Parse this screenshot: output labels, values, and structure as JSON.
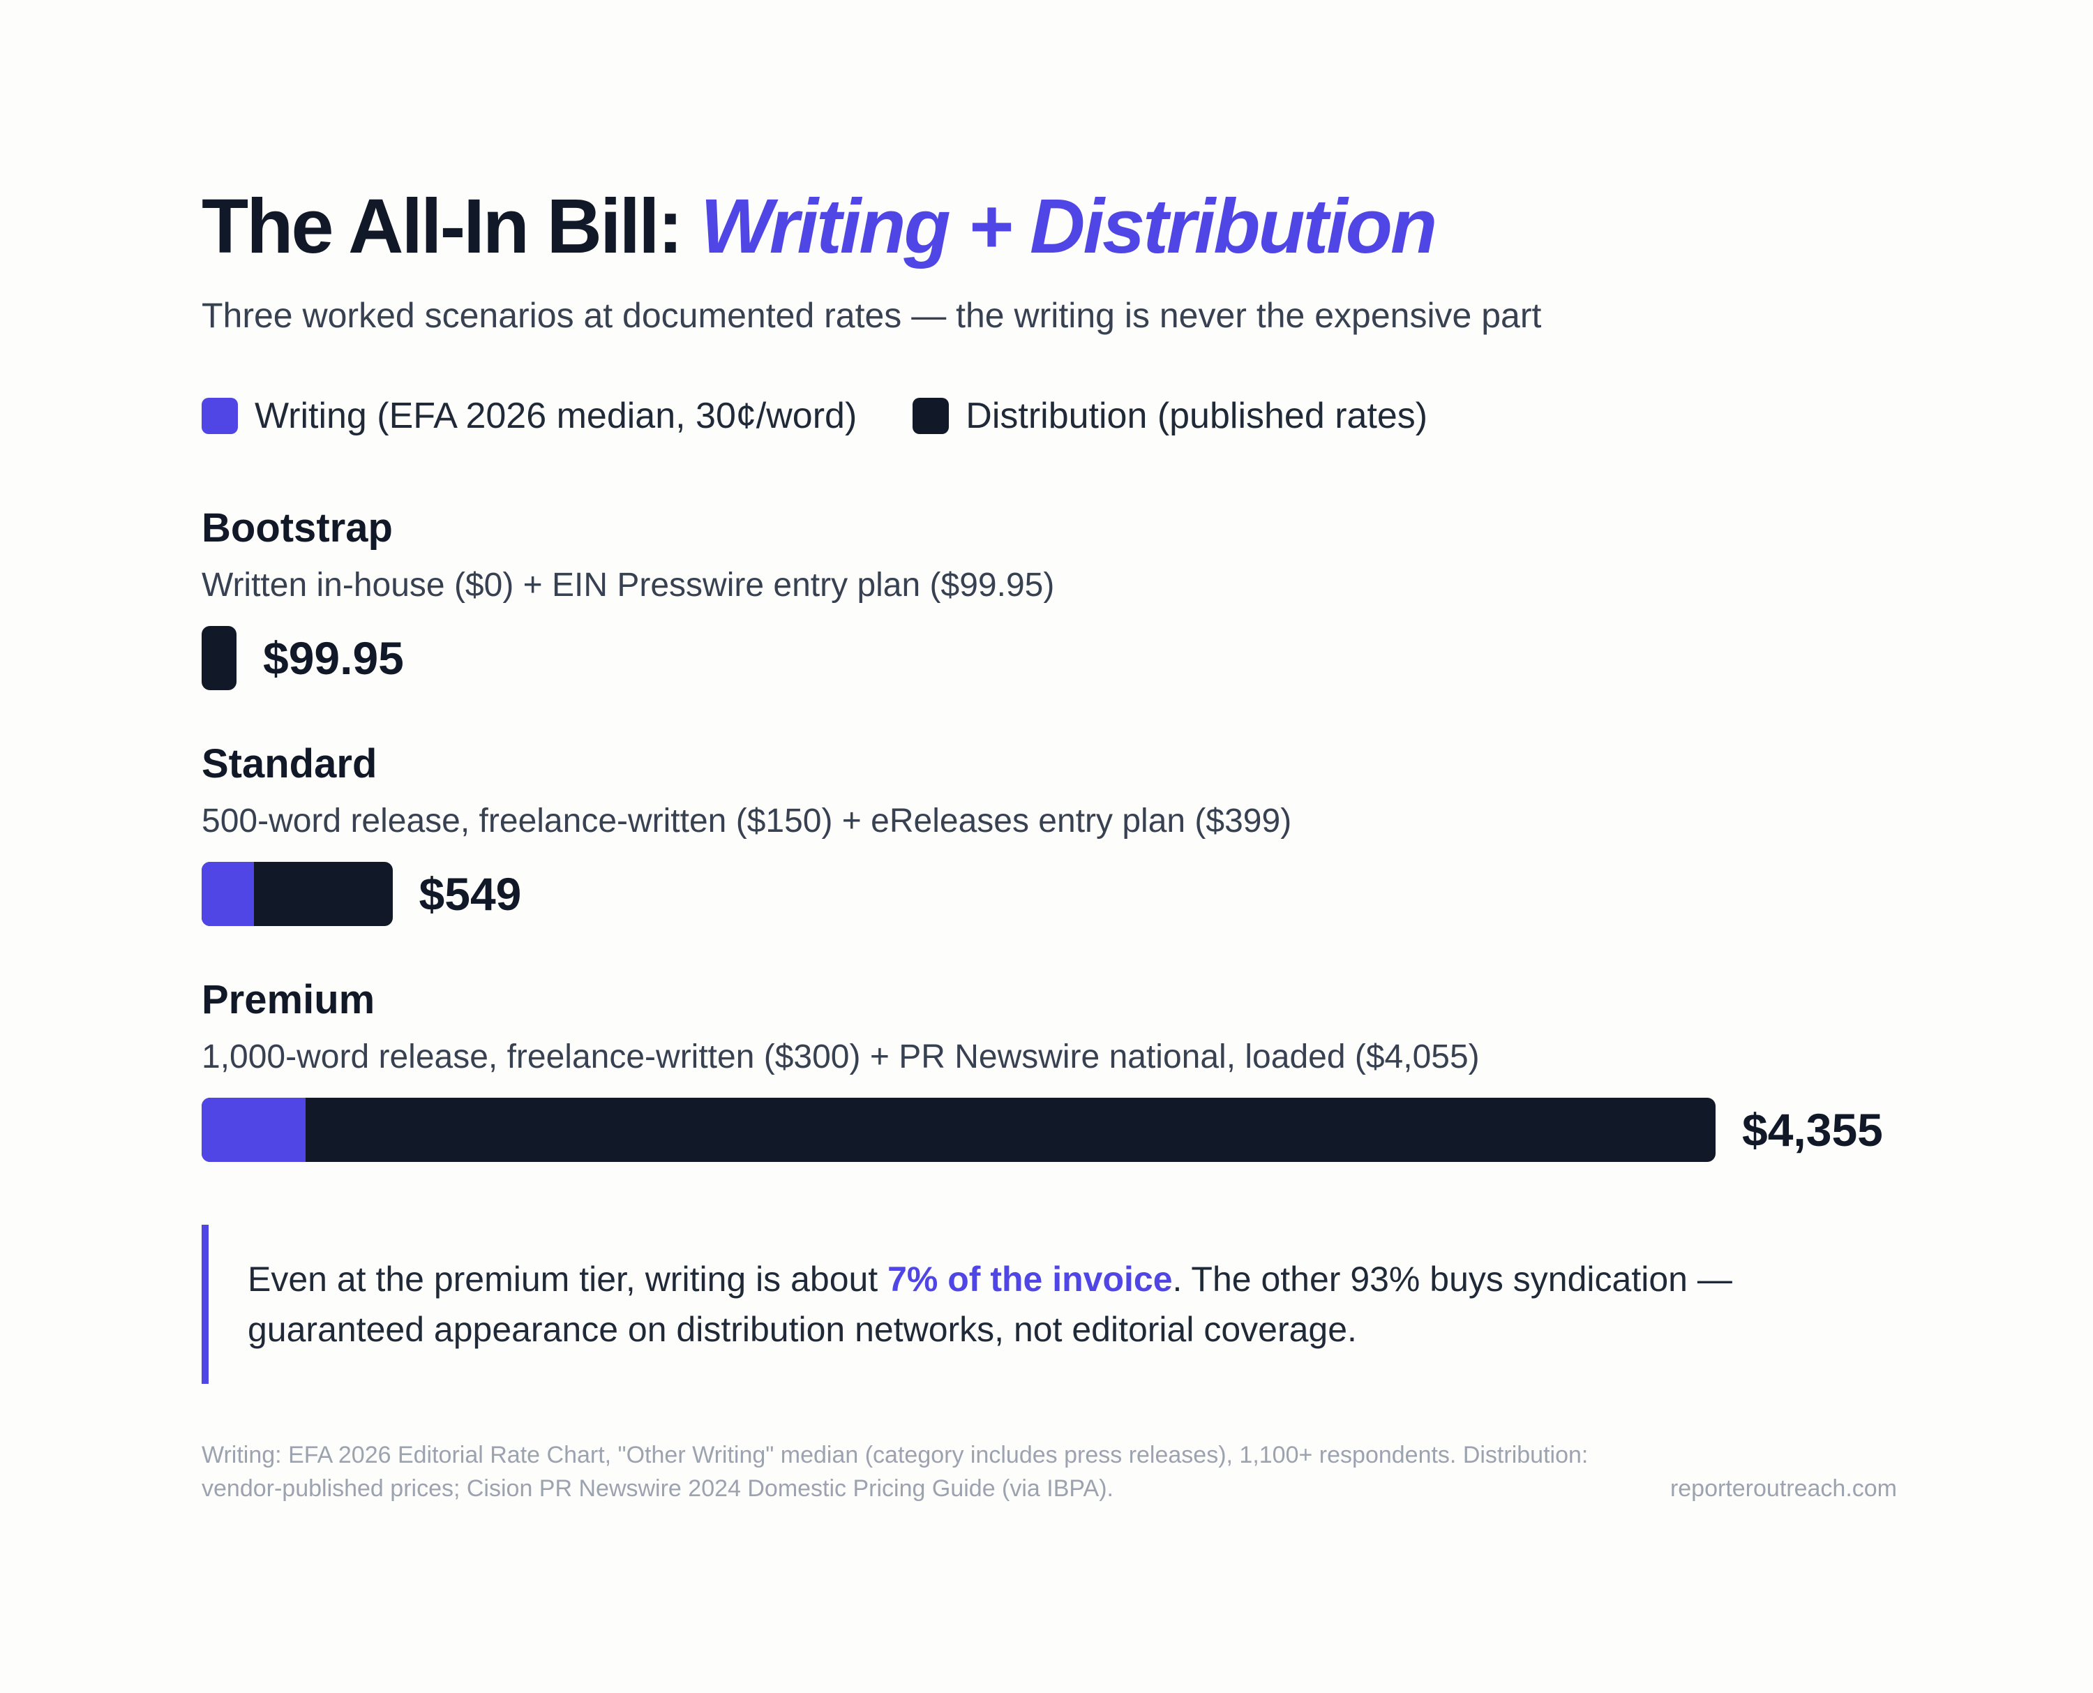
{
  "header": {
    "title_plain": "The All-In Bill:",
    "title_accent": "Writing + Distribution",
    "subtitle": "Three worked scenarios at documented rates — the writing is never the expensive part"
  },
  "legend": {
    "writing": "Writing (EFA 2026 median, 30¢/word)",
    "distribution": "Distribution (published rates)"
  },
  "colors": {
    "writing": "#4f46e5",
    "distribution": "#111827"
  },
  "chart_data": {
    "type": "bar",
    "orientation": "horizontal",
    "stacked": true,
    "categories": [
      "Bootstrap",
      "Standard",
      "Premium"
    ],
    "descriptions": [
      "Written in-house ($0) + EIN Presswire entry plan ($99.95)",
      "500-word release, freelance-written ($150) + eReleases entry plan ($399)",
      "1,000-word release, freelance-written ($300) + PR Newswire national, loaded ($4,055)"
    ],
    "series": [
      {
        "name": "Writing (EFA 2026 median, 30¢/word)",
        "values": [
          0,
          150,
          300
        ]
      },
      {
        "name": "Distribution (published rates)",
        "values": [
          99.95,
          399,
          4055
        ]
      }
    ],
    "totals": [
      99.95,
      549,
      4355
    ],
    "total_labels": [
      "$99.95",
      "$549",
      "$4,355"
    ],
    "legend_position": "top-left",
    "grid": false,
    "axes_visible": false
  },
  "callout": {
    "before": "Even at the premium tier, writing is about ",
    "highlight": "7% of the invoice",
    "after": ". The other 93% buys syndication — guaranteed appearance on distribution networks, not editorial coverage."
  },
  "footer": {
    "source": "Writing: EFA 2026 Editorial Rate Chart, \"Other Writing\" median (category includes press releases), 1,100+ respondents. Distribution: vendor-published prices; Cision PR Newswire 2024 Domestic Pricing Guide (via IBPA).",
    "site": "reporteroutreach.com"
  }
}
